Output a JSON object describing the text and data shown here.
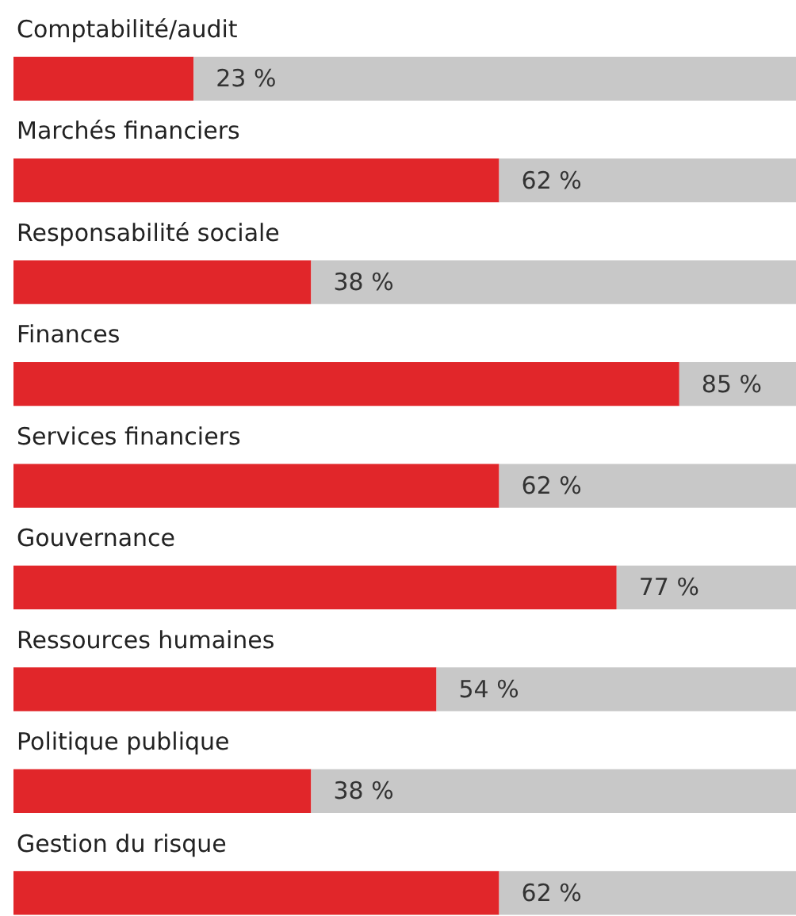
{
  "chart_data": {
    "type": "bar",
    "orientation": "horizontal",
    "stacked": true,
    "xlim": [
      0,
      100
    ],
    "tick_labels": "y",
    "categories": [
      "Comptabilité/audit",
      "Marchés financiers",
      "Responsabilité sociale",
      "Finances",
      "Services financiers",
      "Gouvernance",
      "Ressources humaines",
      "Politique publique",
      "Gestion du risque"
    ],
    "series": [
      {
        "color": "#e1262a",
        "values": [
          23,
          62,
          38,
          85,
          62,
          77,
          54,
          38,
          62
        ],
        "value_labels": [
          "23 %",
          "62 %",
          "38 %",
          "85 %",
          "62 %",
          "77 %",
          "54 %",
          "38 %",
          "62 %"
        ]
      },
      {
        "color": "#c8c8c8",
        "values": [
          77,
          38,
          62,
          15,
          38,
          23,
          46,
          62,
          38
        ]
      }
    ]
  }
}
